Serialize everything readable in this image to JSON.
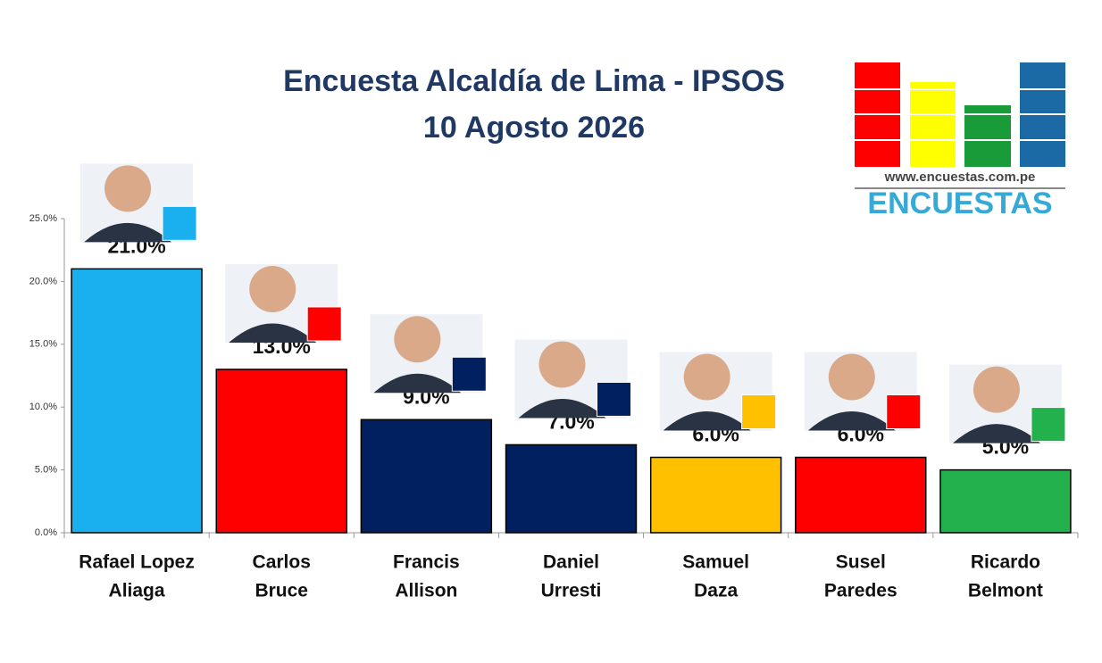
{
  "chart_data": {
    "type": "bar",
    "title": [
      "Encuesta Alcaldía de Lima - IPSOS",
      "10 Agosto 2026"
    ],
    "categories": [
      [
        "Rafael Lopez",
        "Aliaga"
      ],
      [
        "Carlos",
        "Bruce"
      ],
      [
        "Francis",
        "Allison"
      ],
      [
        "Daniel",
        "Urresti"
      ],
      [
        "Samuel",
        "Daza"
      ],
      [
        "Susel",
        "Paredes"
      ],
      [
        "Ricardo",
        "Belmont"
      ]
    ],
    "values": [
      21,
      13,
      9,
      7,
      6,
      6,
      5
    ],
    "value_labels": [
      "21.0%",
      "13.0%",
      "9.0%",
      "7.0%",
      "6.0%",
      "6.0%",
      "5.0%"
    ],
    "colors": [
      "#1ab0ef",
      "#ff0000",
      "#002060",
      "#002060",
      "#ffc000",
      "#ff0000",
      "#22b14c"
    ],
    "ylim": [
      0,
      25
    ],
    "yticks": [
      {
        "value": 0,
        "label": "0.0%"
      },
      {
        "value": 5,
        "label": "5.0%"
      },
      {
        "value": 10,
        "label": "10.0%"
      },
      {
        "value": 15,
        "label": "15.0%"
      },
      {
        "value": 20,
        "label": "20.0%"
      },
      {
        "value": 25,
        "label": "25.0%"
      }
    ],
    "grid": false
  },
  "logo": {
    "url": "www.encuestas.com.pe",
    "name": "ENCUESTAS"
  }
}
